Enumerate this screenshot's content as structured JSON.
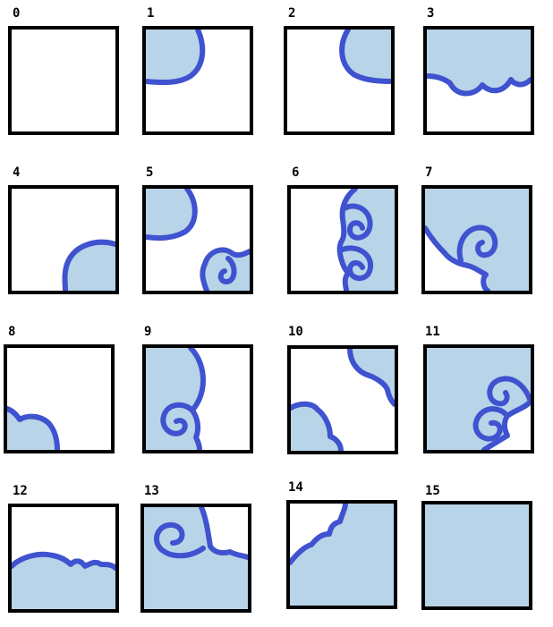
{
  "tileset": {
    "fill_color": "#b8d4e8",
    "edge_color": "#3f52cf",
    "tiles": [
      {
        "label": "0"
      },
      {
        "label": "1"
      },
      {
        "label": "2"
      },
      {
        "label": "3"
      },
      {
        "label": "4"
      },
      {
        "label": "5"
      },
      {
        "label": "6"
      },
      {
        "label": "7"
      },
      {
        "label": "8"
      },
      {
        "label": "9"
      },
      {
        "label": "10"
      },
      {
        "label": "11"
      },
      {
        "label": "12"
      },
      {
        "label": "13"
      },
      {
        "label": "14"
      },
      {
        "label": "15"
      }
    ]
  }
}
